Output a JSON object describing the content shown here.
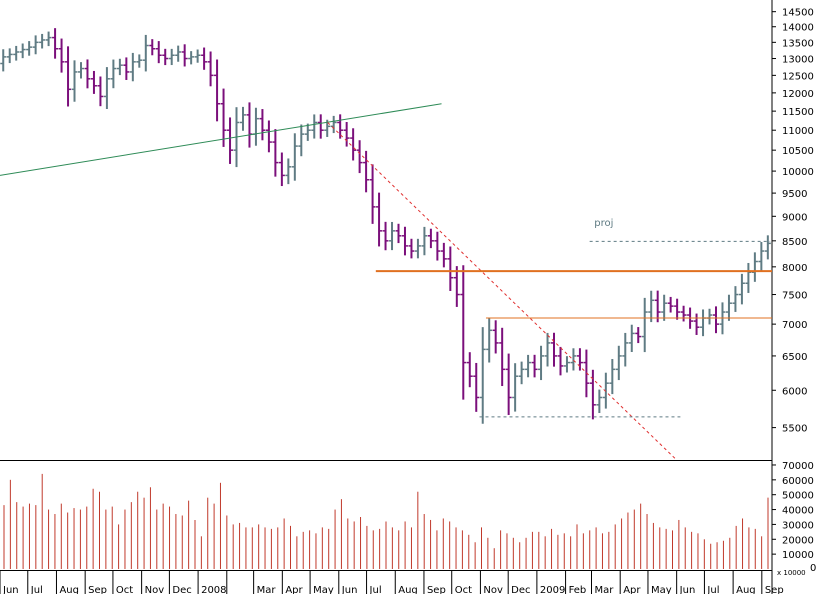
{
  "chart_data": [
    {
      "type": "ohlc-bar",
      "colors": {
        "up": "#5f7b83",
        "down": "#7b0f7b",
        "background": "#ffffff",
        "axis": "#000000"
      },
      "y_scale": "log",
      "ylim": [
        5100,
        14900
      ],
      "y_ticks": [
        5500,
        6000,
        6500,
        7000,
        7500,
        8000,
        8500,
        9000,
        9500,
        10000,
        10500,
        11000,
        11500,
        12000,
        12500,
        13000,
        13500,
        14000,
        14500
      ],
      "x_labels": [
        "Jun",
        "Jul",
        "Aug",
        "Sep",
        "Oct",
        "Nov",
        "Dec",
        "2008",
        "Mar",
        "Apr",
        "May",
        "Jun",
        "Jul",
        "Aug",
        "Sep",
        "Oct",
        "Nov",
        "Dec",
        "2009",
        "Feb",
        "Mar",
        "Apr",
        "May",
        "Jun",
        "Jul",
        "Aug",
        "Sep"
      ],
      "period_start": "2007-06-01",
      "period_end": "2009-09-12",
      "close_series": [
        [
          "2007-06-01",
          12850
        ],
        [
          "2007-06-08",
          13050
        ],
        [
          "2007-06-22",
          13200
        ],
        [
          "2007-07-06",
          13350
        ],
        [
          "2007-07-13",
          13500
        ],
        [
          "2007-07-27",
          13650
        ],
        [
          "2007-08-03",
          13300
        ],
        [
          "2007-08-10",
          12900
        ],
        [
          "2007-08-17",
          12100
        ],
        [
          "2007-08-24",
          12600
        ],
        [
          "2007-08-31",
          12700
        ],
        [
          "2007-09-07",
          12400
        ],
        [
          "2007-09-14",
          12200
        ],
        [
          "2007-09-21",
          11900
        ],
        [
          "2007-09-28",
          12400
        ],
        [
          "2007-10-05",
          12700
        ],
        [
          "2007-10-12",
          12800
        ],
        [
          "2007-10-19",
          12600
        ],
        [
          "2007-10-26",
          12900
        ],
        [
          "2007-11-02",
          12950
        ],
        [
          "2007-11-09",
          13400
        ],
        [
          "2007-11-16",
          13300
        ],
        [
          "2007-11-23",
          13100
        ],
        [
          "2007-11-30",
          13000
        ],
        [
          "2007-12-07",
          13100
        ],
        [
          "2007-12-14",
          13200
        ],
        [
          "2007-12-21",
          13000
        ],
        [
          "2007-12-28",
          13050
        ],
        [
          "2008-01-04",
          13100
        ],
        [
          "2008-01-11",
          12900
        ],
        [
          "2008-01-18",
          12500
        ],
        [
          "2008-01-25",
          11700
        ],
        [
          "2008-02-01",
          11000
        ],
        [
          "2008-02-08",
          10500
        ],
        [
          "2008-02-15",
          11200
        ],
        [
          "2008-02-22",
          11400
        ],
        [
          "2008-02-29",
          10900
        ],
        [
          "2008-03-07",
          11300
        ],
        [
          "2008-03-14",
          11000
        ],
        [
          "2008-03-21",
          10700
        ],
        [
          "2008-03-28",
          10200
        ],
        [
          "2008-04-04",
          9900
        ],
        [
          "2008-04-11",
          10100
        ],
        [
          "2008-04-18",
          10600
        ],
        [
          "2008-04-25",
          10900
        ],
        [
          "2008-05-02",
          11000
        ],
        [
          "2008-05-09",
          11200
        ],
        [
          "2008-05-16",
          11000
        ],
        [
          "2008-05-23",
          11100
        ],
        [
          "2008-05-30",
          11200
        ],
        [
          "2008-06-06",
          11000
        ],
        [
          "2008-06-13",
          10800
        ],
        [
          "2008-06-20",
          10500
        ],
        [
          "2008-06-27",
          10200
        ],
        [
          "2008-07-04",
          9800
        ],
        [
          "2008-07-11",
          9200
        ],
        [
          "2008-07-18",
          8700
        ],
        [
          "2008-07-25",
          8500
        ],
        [
          "2008-08-01",
          8700
        ],
        [
          "2008-08-08",
          8600
        ],
        [
          "2008-08-15",
          8400
        ],
        [
          "2008-08-22",
          8300
        ],
        [
          "2008-08-29",
          8400
        ],
        [
          "2008-09-05",
          8600
        ],
        [
          "2008-09-12",
          8500
        ],
        [
          "2008-09-19",
          8300
        ],
        [
          "2008-09-26",
          8150
        ],
        [
          "2008-10-03",
          7800
        ],
        [
          "2008-10-10",
          7500
        ],
        [
          "2008-10-17",
          6400
        ],
        [
          "2008-10-24",
          6200
        ],
        [
          "2008-10-31",
          5900
        ],
        [
          "2008-11-07",
          6600
        ],
        [
          "2008-11-14",
          6900
        ],
        [
          "2008-11-21",
          6700
        ],
        [
          "2008-11-28",
          6300
        ],
        [
          "2008-12-05",
          5900
        ],
        [
          "2008-12-12",
          6200
        ],
        [
          "2008-12-19",
          6300
        ],
        [
          "2008-12-26",
          6400
        ],
        [
          "2009-01-02",
          6300
        ],
        [
          "2009-01-09",
          6500
        ],
        [
          "2009-01-16",
          6700
        ],
        [
          "2009-01-23",
          6500
        ],
        [
          "2009-01-30",
          6350
        ],
        [
          "2009-02-06",
          6400
        ],
        [
          "2009-02-13",
          6500
        ],
        [
          "2009-02-20",
          6400
        ],
        [
          "2009-02-27",
          6100
        ],
        [
          "2009-03-06",
          5800
        ],
        [
          "2009-03-13",
          5900
        ],
        [
          "2009-03-20",
          6100
        ],
        [
          "2009-03-27",
          6300
        ],
        [
          "2009-04-03",
          6500
        ],
        [
          "2009-04-10",
          6700
        ],
        [
          "2009-04-17",
          6850
        ],
        [
          "2009-04-24",
          6800
        ],
        [
          "2009-05-01",
          7200
        ],
        [
          "2009-05-08",
          7400
        ],
        [
          "2009-05-15",
          7200
        ],
        [
          "2009-05-22",
          7350
        ],
        [
          "2009-05-29",
          7300
        ],
        [
          "2009-06-05",
          7200
        ],
        [
          "2009-06-12",
          7150
        ],
        [
          "2009-06-19",
          7050
        ],
        [
          "2009-06-26",
          6950
        ],
        [
          "2009-07-03",
          7100
        ],
        [
          "2009-07-10",
          7150
        ],
        [
          "2009-07-17",
          7000
        ],
        [
          "2009-07-24",
          7200
        ],
        [
          "2009-07-31",
          7350
        ],
        [
          "2009-08-07",
          7500
        ],
        [
          "2009-08-14",
          7700
        ],
        [
          "2009-08-21",
          7900
        ],
        [
          "2009-08-28",
          8100
        ],
        [
          "2009-09-04",
          8300
        ],
        [
          "2009-09-11",
          8450
        ]
      ],
      "annotations": [
        {
          "type": "trendline",
          "color": "#2e8b57",
          "from": [
            "2007-06-01",
            9900
          ],
          "to": [
            "2008-09-20",
            11700
          ]
        },
        {
          "type": "trendline",
          "style": "dashed",
          "color": "#e03030",
          "from": [
            "2008-05-20",
            11200
          ],
          "to": [
            "2009-06-01",
            5100
          ]
        },
        {
          "type": "hline",
          "color": "#e07020",
          "width": 2,
          "y": 7920,
          "from": "2008-07-11",
          "to": "2009-09-12"
        },
        {
          "type": "hline",
          "color": "#e07020",
          "width": 1,
          "y": 7100,
          "from": "2008-11-07",
          "to": "2009-09-12"
        },
        {
          "type": "hline",
          "style": "dashed",
          "color": "#5f7b83",
          "y": 5640,
          "from": "2008-10-31",
          "to": "2009-06-05"
        },
        {
          "type": "hline",
          "style": "dashed",
          "color": "#5f7b83",
          "y": 8490,
          "from": "2009-02-27",
          "to": "2009-09-10"
        }
      ],
      "proj_label": {
        "text": "proj",
        "date": "2009-03-04",
        "y": 8800
      }
    },
    {
      "type": "bar",
      "ylim": [
        0,
        72000
      ],
      "y_ticks": [
        10000,
        20000,
        30000,
        40000,
        50000,
        60000,
        70000
      ],
      "corner_label": "x 10000",
      "values": [
        43000,
        60000,
        45000,
        42000,
        44000,
        43000,
        64000,
        40000,
        37000,
        44000,
        38000,
        41000,
        40000,
        42000,
        54000,
        52000,
        40000,
        42000,
        30000,
        40000,
        45000,
        52000,
        48000,
        55000,
        40000,
        44000,
        42000,
        37000,
        36000,
        46000,
        33000,
        22000,
        48000,
        44000,
        58000,
        36000,
        30000,
        31000,
        28000,
        28000,
        30000,
        28000,
        27000,
        28000,
        34000,
        29000,
        22000,
        25000,
        26000,
        24000,
        28000,
        27000,
        40000,
        47000,
        34000,
        32000,
        35000,
        29000,
        26000,
        27000,
        32000,
        28000,
        26000,
        32000,
        28000,
        52000,
        37000,
        33000,
        26000,
        34000,
        32000,
        28000,
        26000,
        23000,
        18000,
        28000,
        21000,
        14000,
        26000,
        24000,
        21000,
        18000,
        21000,
        25000,
        25000,
        22000,
        27000,
        23000,
        24000,
        22000,
        30000,
        24000,
        26000,
        28000,
        24000,
        25000,
        30000,
        34000,
        38000,
        40000,
        44000,
        37000,
        31000,
        28000,
        27000,
        26000,
        33000,
        28000,
        25000,
        24000,
        20000,
        17000,
        18000,
        19000,
        21000,
        29000,
        34000,
        28000,
        27000,
        22000,
        48000
      ]
    }
  ]
}
